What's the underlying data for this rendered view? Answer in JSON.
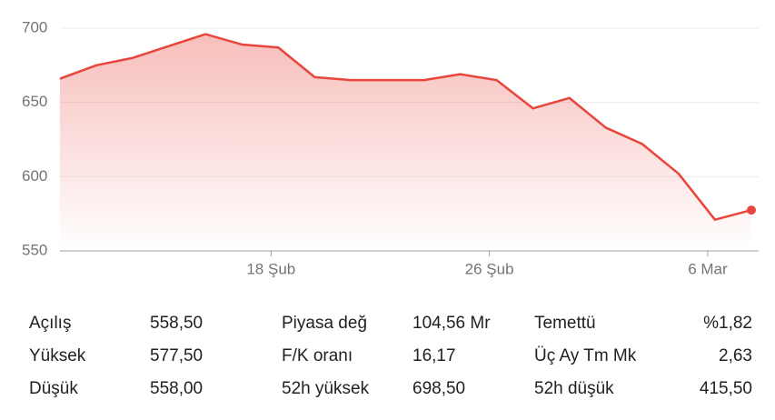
{
  "chart_data": {
    "type": "line",
    "x": [
      0,
      1,
      2,
      3,
      4,
      5,
      6,
      7,
      8,
      9,
      10,
      11,
      12,
      13,
      14,
      15,
      16,
      17,
      18,
      19
    ],
    "series": [
      {
        "color": "#e8453c",
        "values": [
          666,
          675,
          680,
          688,
          696,
          689,
          687,
          667,
          665,
          665,
          665,
          669,
          665,
          646,
          653,
          633,
          622,
          602,
          571,
          577.5
        ]
      }
    ],
    "xlim": [
      0,
      19.2
    ],
    "xticks": [
      {
        "value": 5.8,
        "label": "18 Şub"
      },
      {
        "value": 11.8,
        "label": "26 Şub"
      },
      {
        "value": 17.8,
        "label": "6 Mar"
      }
    ],
    "ylim": [
      550,
      700
    ],
    "yticks": [
      550,
      600,
      650,
      700
    ],
    "grid": true
  },
  "stats": [
    [
      [
        "Açılış",
        "558,50"
      ],
      [
        "Yüksek",
        "577,50"
      ],
      [
        "Düşük",
        "558,00"
      ]
    ],
    [
      [
        "Piyasa değ",
        "104,56 Mr"
      ],
      [
        "F/K oranı",
        "16,17"
      ],
      [
        "52h yüksek",
        "698,50"
      ]
    ],
    [
      [
        "Temettü",
        "%1,82"
      ],
      [
        "Üç Ay Tm Mk",
        "2,63"
      ],
      [
        "52h düşük",
        "415,50"
      ]
    ]
  ]
}
